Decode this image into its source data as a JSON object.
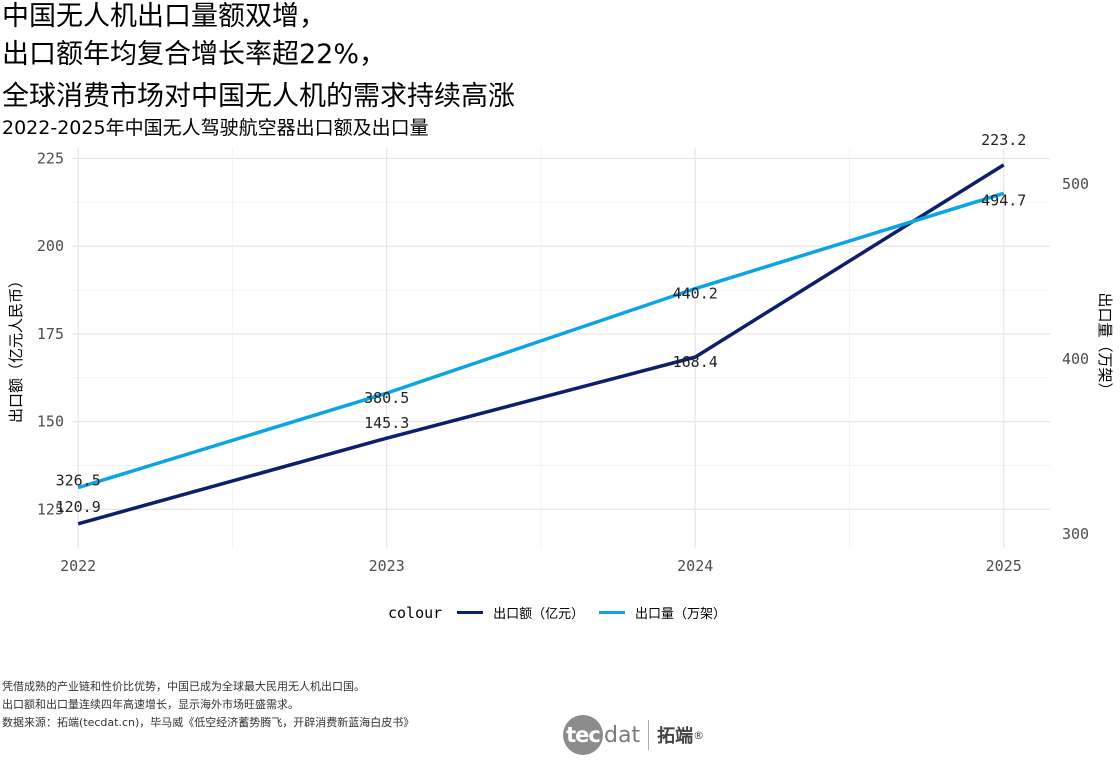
{
  "title_lines": [
    "中国无人机出口量额双增，",
    "出口额年均复合增长率超22%，",
    "全球消费市场对中国无人机的需求持续高涨"
  ],
  "subtitle": "2022-2025年中国无人驾驶航空器出口额及出口量",
  "legend": {
    "title": "colour",
    "items": [
      {
        "label": "出口额（亿元）",
        "color": "#0d1f6b"
      },
      {
        "label": "出口量（万架）",
        "color": "#0ba5e6"
      }
    ]
  },
  "notes": [
    "凭借成熟的产业链和性价比优势，中国已成为全球最大民用无人机出口国。",
    "出口额和出口量连续四年高速增长，显示海外市场旺盛需求。",
    "数据来源：拓端(tecdat.cn)，毕马威《低空经济蓄势腾飞，开辟消费新蓝海白皮书》"
  ],
  "logo": {
    "mark": "tec",
    "text": "dat",
    "cn": "拓端",
    "reg": "®"
  },
  "chart_data": {
    "type": "line",
    "x": [
      2022,
      2023,
      2024,
      2025
    ],
    "xlim": [
      2021.98,
      2025.15
    ],
    "x_ticks": [
      "2022",
      "2023",
      "2024",
      "2025"
    ],
    "series": [
      {
        "name": "出口额（亿元）",
        "axis": "left",
        "color": "#0d1f6b",
        "values": [
          120.9,
          145.3,
          168.4,
          223.2
        ],
        "labels": [
          "120.9",
          "145.3",
          "168.4",
          "223.2"
        ]
      },
      {
        "name": "出口量（万架）",
        "axis": "right",
        "color": "#0ba5e6",
        "values": [
          326.5,
          380.5,
          440.2,
          494.7
        ],
        "labels": [
          "326.5",
          "380.5",
          "440.2",
          "494.7"
        ]
      }
    ],
    "y_left": {
      "label": "出口额（亿元人民币）",
      "lim": [
        114,
        228
      ],
      "ticks": [
        125,
        150,
        175,
        200,
        225
      ]
    },
    "y_right": {
      "label": "出口量（万架）",
      "lim": [
        300,
        500
      ],
      "ticks": [
        300,
        400,
        500
      ]
    },
    "grid": true,
    "legend_position": "bottom"
  }
}
